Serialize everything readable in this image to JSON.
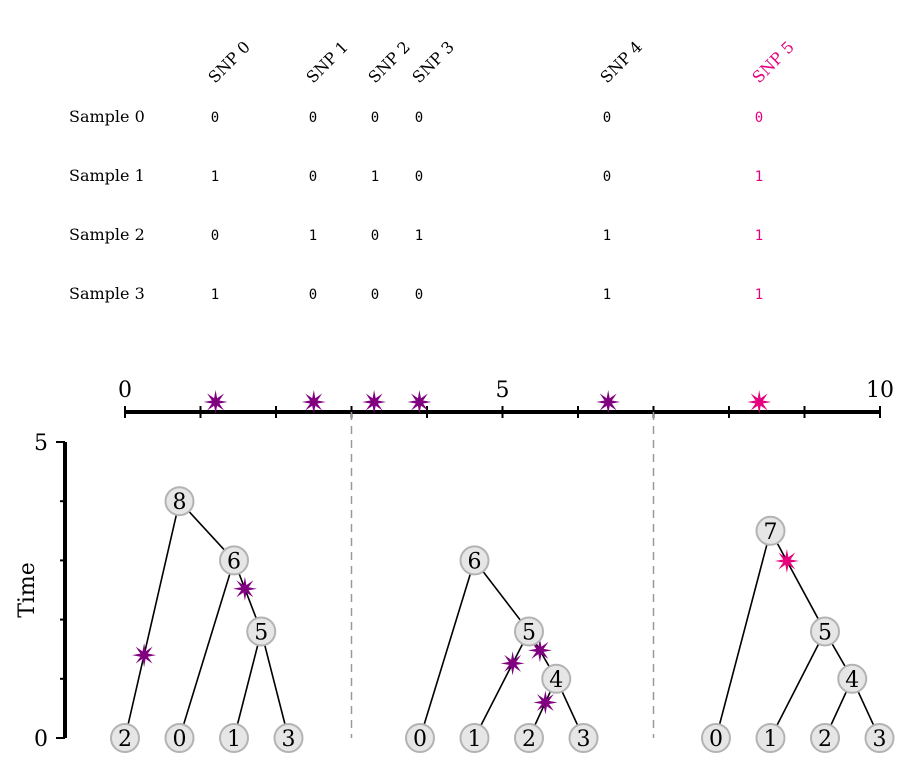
{
  "snps": [
    {
      "label": "SNP 0",
      "pos": 1.2,
      "highlight": false
    },
    {
      "label": "SNP 1",
      "pos": 2.5,
      "highlight": false
    },
    {
      "label": "SNP 2",
      "pos": 3.3,
      "highlight": false
    },
    {
      "label": "SNP 3",
      "pos": 3.9,
      "highlight": false
    },
    {
      "label": "SNP 4",
      "pos": 6.4,
      "highlight": false
    },
    {
      "label": "SNP 5",
      "pos": 8.4,
      "highlight": true
    }
  ],
  "samples": [
    {
      "label": "Sample 0",
      "genotypes": [
        "0",
        "0",
        "0",
        "0",
        "0",
        "0"
      ]
    },
    {
      "label": "Sample 1",
      "genotypes": [
        "1",
        "0",
        "1",
        "0",
        "0",
        "1"
      ]
    },
    {
      "label": "Sample 2",
      "genotypes": [
        "0",
        "1",
        "0",
        "1",
        "1",
        "1"
      ]
    },
    {
      "label": "Sample 3",
      "genotypes": [
        "1",
        "0",
        "0",
        "0",
        "1",
        "1"
      ]
    }
  ],
  "genome_axis": {
    "min": 0,
    "max": 10,
    "tick_labels": [
      {
        "value": 0,
        "text": "0"
      },
      {
        "value": 5,
        "text": "5"
      },
      {
        "value": 10,
        "text": "10"
      }
    ],
    "tree_breakpoints": [
      3,
      7
    ]
  },
  "time_axis": {
    "label": "Time",
    "min": 0,
    "max": 5,
    "tick_labels": [
      {
        "value": 0,
        "text": "0"
      },
      {
        "value": 5,
        "text": "5"
      }
    ]
  },
  "colors": {
    "mutation": "#800080",
    "highlight": "#e6007e",
    "node_fill": "#e6e6e6",
    "node_stroke": "#b3b3b3"
  },
  "trees": [
    {
      "nodes": [
        {
          "id": "2",
          "time": 0,
          "x": 0
        },
        {
          "id": "0",
          "time": 0,
          "x": 1
        },
        {
          "id": "1",
          "time": 0,
          "x": 2
        },
        {
          "id": "3",
          "time": 0,
          "x": 3
        },
        {
          "id": "5",
          "time": 1.8,
          "x": 2.5
        },
        {
          "id": "6",
          "time": 3.0,
          "x": 2.0
        },
        {
          "id": "8",
          "time": 4.0,
          "x": 1.0
        }
      ],
      "edges": [
        [
          "8",
          "2"
        ],
        [
          "8",
          "6"
        ],
        [
          "6",
          "0"
        ],
        [
          "6",
          "5"
        ],
        [
          "5",
          "1"
        ],
        [
          "5",
          "3"
        ]
      ],
      "mutations": [
        {
          "child": "2",
          "frac": 0.35,
          "highlight": false
        },
        {
          "child": "5",
          "frac": 0.6,
          "highlight": false
        }
      ]
    },
    {
      "nodes": [
        {
          "id": "0",
          "time": 0,
          "x": 0
        },
        {
          "id": "1",
          "time": 0,
          "x": 1
        },
        {
          "id": "2",
          "time": 0,
          "x": 2
        },
        {
          "id": "3",
          "time": 0,
          "x": 3
        },
        {
          "id": "4",
          "time": 1.0,
          "x": 2.5
        },
        {
          "id": "5",
          "time": 1.8,
          "x": 2.0
        },
        {
          "id": "6",
          "time": 3.0,
          "x": 1.0
        }
      ],
      "edges": [
        [
          "6",
          "0"
        ],
        [
          "6",
          "5"
        ],
        [
          "5",
          "1"
        ],
        [
          "5",
          "4"
        ],
        [
          "4",
          "2"
        ],
        [
          "4",
          "3"
        ]
      ],
      "mutations": [
        {
          "child": "1",
          "frac": 0.7,
          "highlight": false
        },
        {
          "child": "4",
          "frac": 0.6,
          "highlight": false
        },
        {
          "child": "2",
          "frac": 0.6,
          "highlight": false
        }
      ]
    },
    {
      "nodes": [
        {
          "id": "0",
          "time": 0,
          "x": 0
        },
        {
          "id": "1",
          "time": 0,
          "x": 1
        },
        {
          "id": "2",
          "time": 0,
          "x": 2
        },
        {
          "id": "3",
          "time": 0,
          "x": 3
        },
        {
          "id": "4",
          "time": 1.0,
          "x": 2.5
        },
        {
          "id": "5",
          "time": 1.8,
          "x": 2.0
        },
        {
          "id": "7",
          "time": 3.5,
          "x": 1.0
        }
      ],
      "edges": [
        [
          "7",
          "0"
        ],
        [
          "7",
          "5"
        ],
        [
          "5",
          "1"
        ],
        [
          "5",
          "4"
        ],
        [
          "4",
          "2"
        ],
        [
          "4",
          "3"
        ]
      ],
      "mutations": [
        {
          "child": "5",
          "frac": 0.7,
          "highlight": true
        }
      ]
    }
  ]
}
